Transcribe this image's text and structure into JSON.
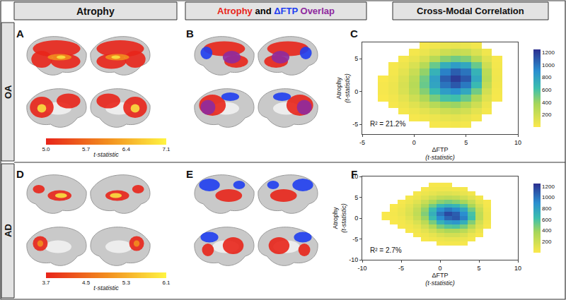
{
  "header": {
    "atrophy": "Atrophy",
    "overlap": [
      {
        "text": "Atrophy",
        "color": "#e8251a"
      },
      {
        "text": "and",
        "color": "#000000"
      },
      {
        "text": "ΔFTP",
        "color": "#1f3ef0"
      },
      {
        "text": "Overlap",
        "color": "#8e2a9e"
      }
    ],
    "correlation": "Cross-Modal Correlation"
  },
  "rows": [
    "OA",
    "AD"
  ],
  "chart_data": [
    {
      "type": "brain_map",
      "panel": "A",
      "colorbar": {
        "range": [
          5.0,
          7.1
        ],
        "ticks": [
          {
            "value": 5,
            "label": "5.0"
          },
          5.7,
          6.4,
          7.1
        ],
        "title": "t-statistic"
      }
    },
    {
      "type": "overlap_map",
      "panel": "B"
    },
    {
      "type": "heatmap",
      "panel": "C",
      "xlabel": "ΔFTP",
      "xlabel_sub": "(t-statistic)",
      "ylabel": "Atrophy",
      "ylabel_sub": "(t-statistic)",
      "annotation": "R² = 21.2%",
      "xlim": [
        -5,
        10
      ],
      "xticks": [
        -5,
        0,
        5,
        10
      ],
      "ylim": [
        -6.5,
        7.5
      ],
      "yticks": [
        -5,
        0,
        5
      ],
      "x": [
        -3,
        -2,
        -1,
        0,
        1,
        2,
        3,
        4,
        5,
        6,
        7,
        8
      ],
      "y": [
        -5,
        -4,
        -3,
        -2,
        -1,
        0,
        1,
        2,
        3,
        4,
        5,
        6,
        7
      ],
      "z": [
        [
          null,
          null,
          null,
          null,
          null,
          20,
          30,
          40,
          30,
          null,
          null,
          null
        ],
        [
          null,
          null,
          null,
          20,
          40,
          60,
          90,
          100,
          80,
          40,
          null,
          null
        ],
        [
          null,
          null,
          30,
          60,
          100,
          150,
          200,
          220,
          180,
          100,
          30,
          null
        ],
        [
          null,
          20,
          60,
          120,
          200,
          300,
          380,
          400,
          320,
          200,
          60,
          null
        ],
        [
          10,
          40,
          100,
          200,
          330,
          480,
          600,
          620,
          520,
          330,
          120,
          20
        ],
        [
          20,
          60,
          150,
          280,
          450,
          650,
          820,
          880,
          760,
          500,
          180,
          30
        ],
        [
          20,
          60,
          160,
          300,
          520,
          780,
          1000,
          1100,
          980,
          660,
          250,
          40
        ],
        [
          10,
          50,
          140,
          280,
          500,
          800,
          1080,
          1200,
          1100,
          760,
          300,
          50
        ],
        [
          null,
          30,
          100,
          220,
          420,
          700,
          950,
          1080,
          1000,
          700,
          280,
          40
        ],
        [
          null,
          20,
          60,
          150,
          300,
          520,
          720,
          820,
          760,
          520,
          200,
          30
        ],
        [
          null,
          null,
          30,
          80,
          160,
          300,
          440,
          500,
          460,
          300,
          120,
          20
        ],
        [
          null,
          null,
          null,
          30,
          70,
          130,
          200,
          240,
          220,
          140,
          50,
          null
        ],
        [
          null,
          null,
          null,
          null,
          20,
          40,
          70,
          80,
          70,
          40,
          null,
          null
        ]
      ],
      "colorbar": {
        "range": [
          0,
          1250
        ],
        "ticks": [
          200,
          400,
          600,
          800,
          1000,
          1200
        ]
      }
    },
    {
      "type": "brain_map",
      "panel": "D",
      "colorbar": {
        "range": [
          3.7,
          6.1
        ],
        "ticks": [
          3.7,
          4.5,
          5.3,
          6.1
        ],
        "title": "t-statistic"
      }
    },
    {
      "type": "overlap_map",
      "panel": "E"
    },
    {
      "type": "heatmap",
      "panel": "F",
      "xlabel": "ΔFTP",
      "xlabel_sub": "(t-statistic)",
      "ylabel": "Atrophy",
      "ylabel_sub": "(t-statistic)",
      "annotation": "R² = 2.7%",
      "xlim": [
        -10,
        10
      ],
      "xticks": [
        -10,
        -5,
        0,
        5,
        10
      ],
      "ylim": [
        -10,
        10
      ],
      "yticks": [
        -10,
        -5,
        0,
        5,
        10
      ],
      "x": [
        -7,
        -6,
        -5,
        -4,
        -3,
        -2,
        -1,
        0,
        1,
        2,
        3,
        4,
        5,
        6,
        7
      ],
      "y": [
        -6,
        -5,
        -4,
        -3,
        -2,
        -1,
        0,
        1,
        2,
        3,
        4,
        5,
        6,
        7,
        8
      ],
      "z": [
        [
          null,
          null,
          null,
          null,
          null,
          null,
          null,
          20,
          30,
          30,
          20,
          null,
          null,
          null,
          null
        ],
        [
          null,
          null,
          null,
          null,
          null,
          20,
          40,
          60,
          80,
          80,
          60,
          30,
          null,
          null,
          null
        ],
        [
          null,
          null,
          null,
          null,
          20,
          50,
          90,
          140,
          180,
          180,
          140,
          70,
          20,
          null,
          null
        ],
        [
          null,
          null,
          null,
          20,
          50,
          100,
          180,
          280,
          340,
          340,
          280,
          160,
          60,
          null,
          null
        ],
        [
          null,
          null,
          20,
          40,
          90,
          180,
          320,
          480,
          560,
          580,
          480,
          300,
          120,
          20,
          null
        ],
        [
          null,
          10,
          30,
          70,
          150,
          280,
          480,
          700,
          820,
          860,
          720,
          460,
          180,
          40,
          null
        ],
        [
          10,
          20,
          50,
          110,
          220,
          400,
          640,
          900,
          1050,
          1100,
          950,
          620,
          260,
          60,
          null
        ],
        [
          10,
          30,
          70,
          140,
          260,
          460,
          720,
          1000,
          1150,
          1080,
          900,
          600,
          260,
          60,
          null
        ],
        [
          null,
          20,
          60,
          130,
          240,
          420,
          650,
          880,
          980,
          920,
          760,
          500,
          220,
          50,
          null
        ],
        [
          null,
          10,
          40,
          100,
          190,
          330,
          500,
          660,
          720,
          680,
          560,
          360,
          160,
          30,
          null
        ],
        [
          null,
          null,
          20,
          60,
          120,
          220,
          340,
          440,
          480,
          440,
          360,
          230,
          90,
          20,
          null
        ],
        [
          null,
          null,
          null,
          30,
          60,
          120,
          190,
          250,
          270,
          250,
          190,
          120,
          40,
          null,
          null
        ],
        [
          null,
          null,
          null,
          null,
          30,
          60,
          90,
          120,
          130,
          110,
          80,
          40,
          null,
          null,
          null
        ],
        [
          null,
          null,
          null,
          null,
          null,
          20,
          40,
          50,
          50,
          40,
          30,
          null,
          null,
          null,
          null
        ],
        [
          null,
          null,
          null,
          null,
          null,
          null,
          20,
          20,
          20,
          null,
          null,
          null,
          null,
          null,
          null
        ]
      ],
      "colorbar": {
        "range": [
          0,
          1250
        ],
        "ticks": [
          200,
          400,
          600,
          800,
          1000,
          1200
        ]
      }
    }
  ]
}
